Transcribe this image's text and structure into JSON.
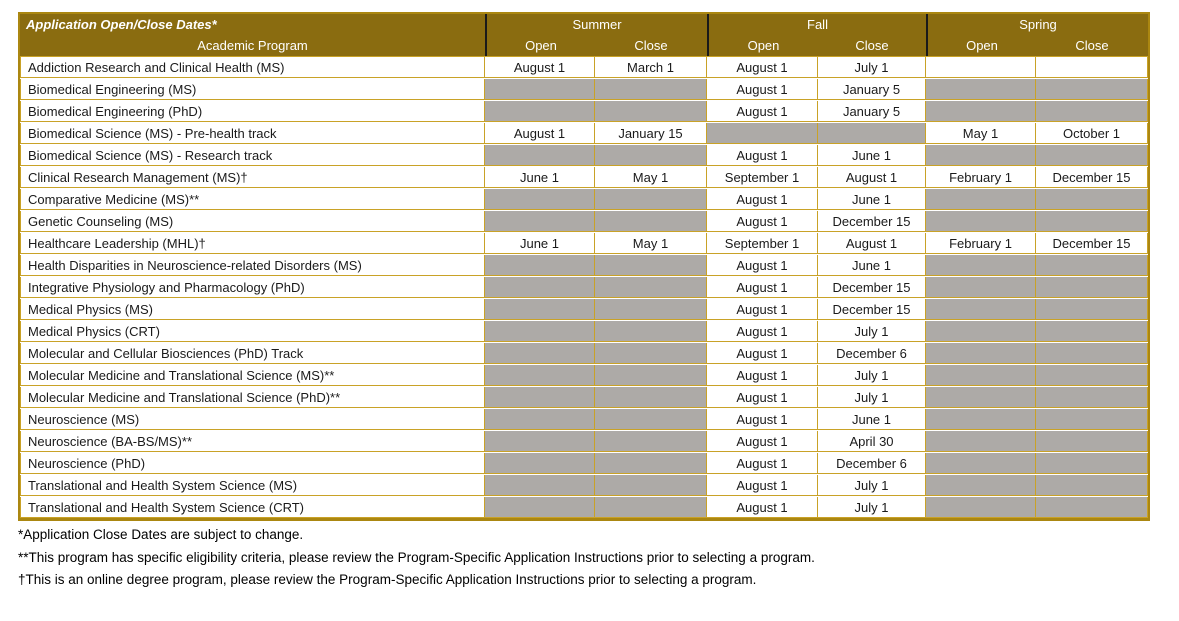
{
  "colors": {
    "header_bg": "#8a6c10",
    "header_text": "#ffffff",
    "border": "#c9a227",
    "outer_border": "#ab8711",
    "empty_cell": "#adaaa7",
    "divider": "#1a1a1a"
  },
  "table": {
    "title": "Application Open/Close Dates*",
    "program_header": "Academic Program",
    "groups": [
      {
        "label": "Summer"
      },
      {
        "label": "Fall"
      },
      {
        "label": "Spring"
      }
    ],
    "sub_headers": [
      "Open",
      "Close",
      "Open",
      "Close",
      "Open",
      "Close"
    ],
    "rows": [
      {
        "program": "Addiction Research and Clinical Health (MS)",
        "cells": [
          "August 1",
          "March 1",
          "August 1",
          "July 1",
          "",
          ""
        ]
      },
      {
        "program": "Biomedical Engineering (MS)",
        "cells": [
          null,
          null,
          "August 1",
          "January 5",
          null,
          null
        ]
      },
      {
        "program": "Biomedical Engineering (PhD)",
        "cells": [
          null,
          null,
          "August 1",
          "January 5",
          null,
          null
        ]
      },
      {
        "program": "Biomedical Science (MS) - Pre-health track",
        "cells": [
          "August 1",
          "January 15",
          null,
          null,
          "May 1",
          "October 1"
        ]
      },
      {
        "program": "Biomedical Science (MS) - Research track",
        "cells": [
          null,
          null,
          "August 1",
          "June 1",
          null,
          null
        ]
      },
      {
        "program": "Clinical Research Management (MS)†",
        "cells": [
          "June 1",
          "May 1",
          "September 1",
          "August 1",
          "February 1",
          "December 15"
        ]
      },
      {
        "program": "Comparative Medicine (MS)**",
        "cells": [
          null,
          null,
          "August 1",
          "June 1",
          null,
          null
        ]
      },
      {
        "program": "Genetic Counseling (MS)",
        "cells": [
          null,
          null,
          "August 1",
          "December 15",
          null,
          null
        ]
      },
      {
        "program": "Healthcare Leadership (MHL)†",
        "cells": [
          "June 1",
          "May 1",
          "September 1",
          "August 1",
          "February 1",
          "December 15"
        ]
      },
      {
        "program": "Health Disparities in Neuroscience-related Disorders (MS)",
        "cells": [
          null,
          null,
          "August 1",
          "June 1",
          null,
          null
        ]
      },
      {
        "program": "Integrative Physiology and Pharmacology (PhD)",
        "cells": [
          null,
          null,
          "August 1",
          "December 15",
          null,
          null
        ]
      },
      {
        "program": "Medical Physics (MS)",
        "cells": [
          null,
          null,
          "August 1",
          "December 15",
          null,
          null
        ]
      },
      {
        "program": "Medical Physics (CRT)",
        "cells": [
          null,
          null,
          "August 1",
          "July 1",
          null,
          null
        ]
      },
      {
        "program": "Molecular and Cellular Biosciences (PhD) Track",
        "cells": [
          null,
          null,
          "August 1",
          "December 6",
          null,
          null
        ]
      },
      {
        "program": "Molecular Medicine and Translational Science (MS)**",
        "cells": [
          null,
          null,
          "August 1",
          "July 1",
          null,
          null
        ]
      },
      {
        "program": "Molecular Medicine and Translational Science (PhD)**",
        "cells": [
          null,
          null,
          "August 1",
          "July 1",
          null,
          null
        ]
      },
      {
        "program": "Neuroscience (MS)",
        "cells": [
          null,
          null,
          "August 1",
          "June 1",
          null,
          null
        ]
      },
      {
        "program": "Neuroscience (BA-BS/MS)**",
        "cells": [
          null,
          null,
          "August 1",
          "April 30",
          null,
          null
        ]
      },
      {
        "program": "Neuroscience (PhD)",
        "cells": [
          null,
          null,
          "August 1",
          "December 6",
          null,
          null
        ]
      },
      {
        "program": "Translational and Health System Science (MS)",
        "cells": [
          null,
          null,
          "August 1",
          "July 1",
          null,
          null
        ]
      },
      {
        "program": "Translational and Health System Science (CRT)",
        "cells": [
          null,
          null,
          "August 1",
          "July 1",
          null,
          null
        ]
      }
    ]
  },
  "footnotes": [
    "*Application Close Dates are subject to change.",
    "**This program has specific eligibility criteria, please review the Program-Specific Application Instructions prior to selecting a program.",
    "†This is an online degree program, please review the Program-Specific Application Instructions prior to selecting a program."
  ]
}
